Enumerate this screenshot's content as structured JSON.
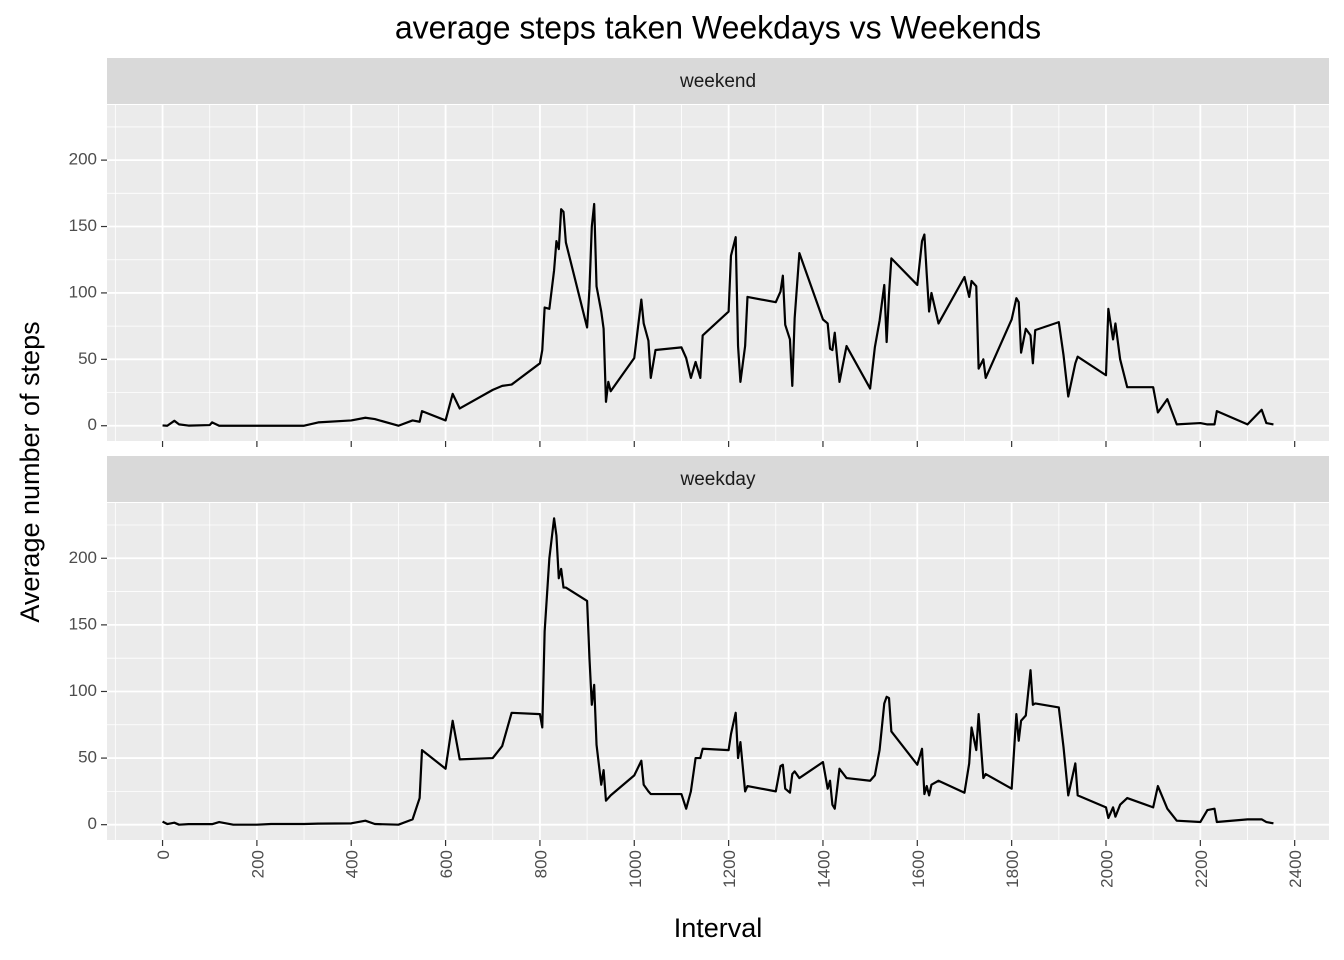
{
  "chart_data": {
    "type": "line",
    "title": "average steps taken Weekdays vs Weekends",
    "xlabel": "Interval",
    "ylabel": "Average number of steps",
    "color": "#000000",
    "grid": true,
    "x": [
      0,
      10,
      25,
      35,
      55,
      100,
      105,
      120,
      150,
      200,
      230,
      300,
      330,
      400,
      430,
      450,
      500,
      530,
      545,
      550,
      600,
      615,
      630,
      700,
      720,
      740,
      800,
      805,
      810,
      820,
      830,
      835,
      840,
      845,
      850,
      855,
      900,
      905,
      910,
      915,
      920,
      930,
      935,
      940,
      945,
      950,
      1000,
      1015,
      1020,
      1030,
      1035,
      1045,
      1100,
      1110,
      1120,
      1130,
      1140,
      1145,
      1200,
      1205,
      1215,
      1220,
      1225,
      1235,
      1240,
      1300,
      1310,
      1315,
      1320,
      1330,
      1335,
      1340,
      1350,
      1400,
      1410,
      1415,
      1420,
      1425,
      1435,
      1450,
      1500,
      1510,
      1520,
      1530,
      1535,
      1540,
      1545,
      1600,
      1610,
      1615,
      1620,
      1625,
      1630,
      1645,
      1700,
      1710,
      1715,
      1725,
      1730,
      1740,
      1745,
      1800,
      1810,
      1815,
      1820,
      1830,
      1840,
      1845,
      1850,
      1900,
      1910,
      1920,
      1935,
      1940,
      2000,
      2005,
      2015,
      2020,
      2030,
      2045,
      2100,
      2110,
      2130,
      2150,
      2200,
      2215,
      2230,
      2235,
      2300,
      2330,
      2340,
      2355
    ],
    "series": [
      {
        "name": "weekend",
        "values": [
          0.2,
          0,
          3.7,
          1,
          0.1,
          0.5,
          2.5,
          0,
          0,
          0,
          0,
          0,
          2.5,
          4,
          6,
          5,
          0,
          4,
          3,
          11,
          4,
          24,
          13,
          27,
          30,
          31,
          47,
          57,
          89,
          88,
          117,
          139,
          133,
          163,
          161,
          138,
          74,
          103,
          150,
          167,
          105,
          86,
          73,
          18,
          33,
          26,
          51,
          95,
          77,
          64,
          36,
          57,
          59,
          51,
          36,
          48,
          36,
          68,
          86,
          128,
          142,
          60,
          33,
          60,
          97,
          93,
          101,
          113,
          76,
          65,
          30,
          81,
          130,
          80,
          77,
          58,
          57,
          70,
          33,
          60,
          28,
          59,
          79,
          106,
          63,
          99,
          126,
          106,
          139,
          144,
          114,
          86,
          100,
          77,
          112,
          97,
          109,
          105,
          43,
          50,
          36,
          80,
          96,
          93,
          55,
          73,
          68,
          47,
          72,
          78,
          53,
          22,
          47,
          52,
          38,
          88,
          65,
          77,
          50,
          29,
          29,
          10,
          20,
          1,
          2,
          1,
          1,
          11,
          1,
          12,
          2,
          1
        ]
      },
      {
        "name": "weekday",
        "values": [
          2.3,
          0.5,
          1.5,
          0,
          0.4,
          0.4,
          0.4,
          2,
          0,
          0,
          0.5,
          0.5,
          0.8,
          1,
          3,
          0.5,
          0,
          4,
          20,
          56,
          42,
          78,
          49,
          50,
          59,
          84,
          83,
          73,
          145,
          200,
          230,
          217,
          185,
          192,
          178,
          178,
          168,
          125,
          90,
          105,
          60,
          30,
          41,
          18,
          20,
          22,
          37,
          48,
          30,
          25,
          23,
          23,
          23,
          12,
          25,
          50,
          50,
          57,
          56,
          68,
          84,
          50,
          62,
          25,
          29,
          25,
          44,
          45,
          27,
          24,
          38,
          40,
          35,
          47,
          27,
          33,
          15,
          12,
          42,
          35,
          33,
          37,
          56,
          91,
          96,
          95,
          70,
          45,
          57,
          23,
          29,
          22,
          30,
          33,
          24,
          46,
          73,
          56,
          83,
          35,
          38,
          27,
          83,
          63,
          78,
          82,
          116,
          90,
          91,
          88,
          58,
          22,
          46,
          22,
          13,
          5,
          13,
          6,
          15,
          20,
          13,
          29,
          12,
          3,
          2,
          11,
          12,
          2,
          4,
          4,
          2,
          1
        ]
      }
    ],
    "xlim": [
      -117.75,
      2472.75
    ],
    "xticks": [
      0,
      200,
      400,
      600,
      800,
      1000,
      1200,
      1400,
      1600,
      1800,
      2000,
      2200,
      2400
    ],
    "xminor": [
      -100,
      100,
      300,
      500,
      700,
      900,
      1100,
      1300,
      1500,
      1700,
      1900,
      2100,
      2300
    ],
    "ylim": [
      -11.5,
      241.5
    ],
    "yticks": [
      0,
      50,
      100,
      150,
      200
    ],
    "yminor": [
      25,
      75,
      125,
      175,
      225
    ]
  }
}
